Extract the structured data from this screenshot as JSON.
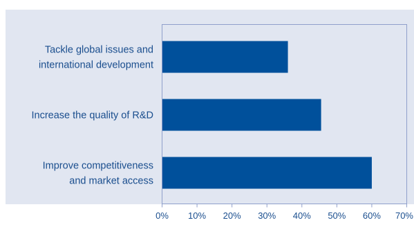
{
  "chart_data": {
    "type": "bar",
    "orientation": "horizontal",
    "categories": [
      [
        "Tackle global issues and",
        "international development"
      ],
      [
        "Increase the quality of R&D"
      ],
      [
        "Improve competitiveness",
        "and market access"
      ]
    ],
    "values": [
      36,
      45.5,
      60
    ],
    "xlim": [
      0,
      70
    ],
    "xticks": [
      0,
      10,
      20,
      30,
      40,
      50,
      60,
      70
    ],
    "tick_suffix": "%",
    "grid": false,
    "colors": {
      "background": "#e1e6f1",
      "bar": "#00509b",
      "text": "#1a4e8e",
      "axis": "#8f9fcb"
    }
  }
}
